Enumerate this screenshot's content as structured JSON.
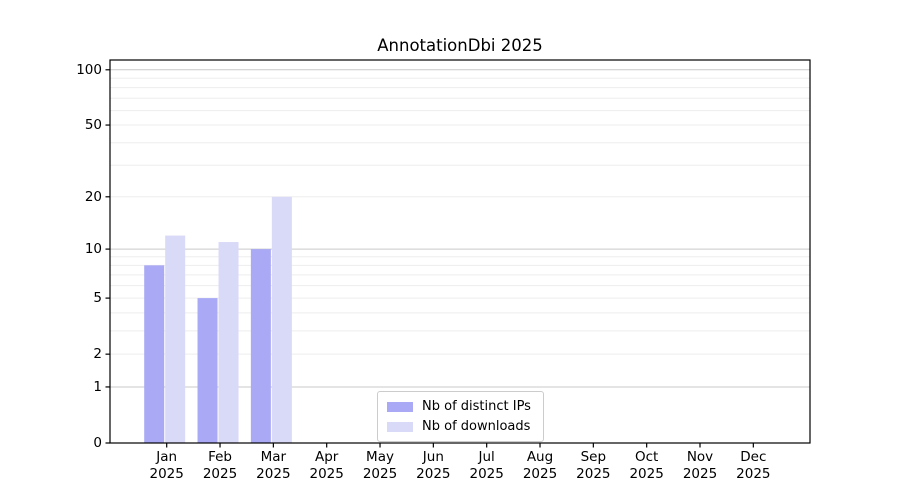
{
  "chart_data": {
    "type": "bar",
    "title": "AnnotationDbi 2025",
    "categories": [
      "Jan",
      "Feb",
      "Mar",
      "Apr",
      "May",
      "Jun",
      "Jul",
      "Aug",
      "Sep",
      "Oct",
      "Nov",
      "Dec"
    ],
    "category_year_suffix": "2025",
    "series": [
      {
        "name": "Nb of distinct IPs",
        "color": "#a9a9f5",
        "values": [
          8,
          5,
          10,
          0,
          0,
          0,
          0,
          0,
          0,
          0,
          0,
          0
        ]
      },
      {
        "name": "Nb of downloads",
        "color": "#d9d9f8",
        "values": [
          12,
          11,
          20,
          0,
          0,
          0,
          0,
          0,
          0,
          0,
          0,
          0
        ]
      }
    ],
    "xlabel": "",
    "ylabel": "",
    "y_axis": {
      "scale": "log1p",
      "tick_labels": [
        0,
        1,
        2,
        5,
        10,
        20,
        50,
        100
      ],
      "major_gridlines": [
        1,
        10,
        100
      ],
      "minor_gridlines": [
        2,
        3,
        4,
        5,
        6,
        7,
        8,
        9,
        20,
        30,
        40,
        50,
        60,
        70,
        80,
        90
      ],
      "ylim": [
        0,
        113
      ]
    },
    "grid": true,
    "legend_position": "bottom-center"
  },
  "colors": {
    "background": "#ffffff",
    "spine": "#000000",
    "major_gridline": "#c9c9c9",
    "minor_gridline": "#ededed",
    "text": "#000000"
  }
}
